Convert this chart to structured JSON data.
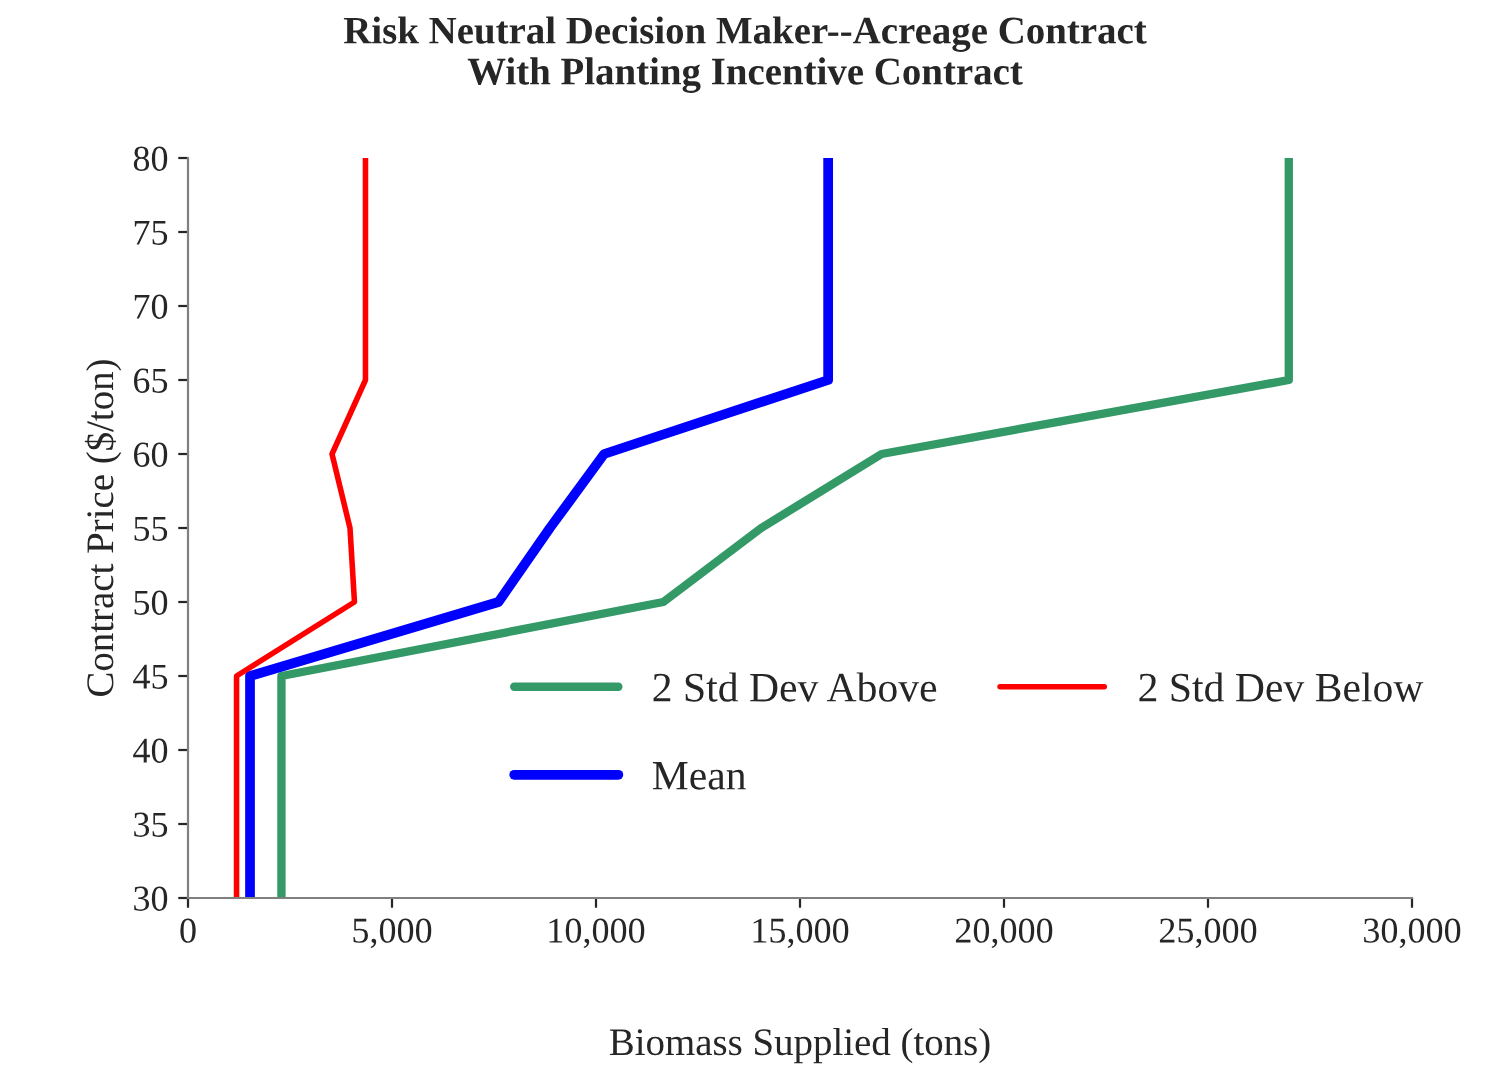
{
  "chart_data": {
    "type": "line",
    "title": "Risk Neutral Decision Maker--Acreage Contract\nWith Planting Incentive Contract",
    "xlabel": "Biomass Supplied (tons)",
    "ylabel": "Contract Price ($/ton)",
    "series": [
      {
        "name": "2 Std Dev Above",
        "color": "#339966",
        "x": [
          2290,
          2290,
          2290,
          2290,
          11650,
          14050,
          17000,
          26980,
          26980,
          26980,
          26980
        ],
        "values": [
          30,
          35,
          40,
          45,
          50,
          55,
          60,
          65,
          70,
          75,
          80
        ]
      },
      {
        "name": "Mean",
        "color": "#0000ff",
        "x": [
          1520,
          1520,
          1520,
          1520,
          7610,
          8870,
          10200,
          15690,
          15690,
          15690,
          15690
        ],
        "values": [
          30,
          35,
          40,
          45,
          50,
          55,
          60,
          65,
          70,
          75,
          80
        ]
      },
      {
        "name": "2 Std Dev Below",
        "color": "#ff0000",
        "x": [
          1190,
          1190,
          1190,
          1190,
          4080,
          3970,
          3530,
          4350,
          4350,
          4350,
          4350
        ],
        "values": [
          30,
          35,
          40,
          45,
          50,
          55,
          60,
          65,
          70,
          75,
          80
        ]
      }
    ],
    "xlim": [
      0,
      30000
    ],
    "xticks": [
      {
        "value": 0,
        "label": "0"
      },
      {
        "value": 5000,
        "label": "5,000"
      },
      {
        "value": 10000,
        "label": "10,000"
      },
      {
        "value": 15000,
        "label": "15,000"
      },
      {
        "value": 20000,
        "label": "20,000"
      },
      {
        "value": 25000,
        "label": "25,000"
      },
      {
        "value": 30000,
        "label": "30,000"
      }
    ],
    "ylim": [
      30,
      80
    ],
    "yticks": [
      30,
      35,
      40,
      45,
      50,
      55,
      60,
      65,
      70,
      75,
      80
    ],
    "legend": "right",
    "grid": false,
    "marker": "none",
    "line_style": "solid"
  }
}
